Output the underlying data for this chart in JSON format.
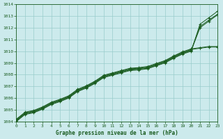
{
  "xlabel": "Graphe pression niveau de la mer (hPa)",
  "ylim": [
    1004,
    1014
  ],
  "xlim": [
    0,
    23
  ],
  "yticks": [
    1004,
    1005,
    1006,
    1007,
    1008,
    1009,
    1010,
    1011,
    1012,
    1013,
    1014
  ],
  "xticks": [
    0,
    1,
    2,
    3,
    4,
    5,
    6,
    7,
    8,
    9,
    10,
    11,
    12,
    13,
    14,
    15,
    16,
    17,
    18,
    19,
    20,
    21,
    22,
    23
  ],
  "bg_color": "#cceaec",
  "grid_color": "#99cccc",
  "line_color": "#1a5c20",
  "line1": [
    1004.1,
    1004.7,
    1004.85,
    1005.15,
    1005.55,
    1005.8,
    1006.1,
    1006.65,
    1006.95,
    1007.35,
    1007.85,
    1008.05,
    1008.25,
    1008.45,
    1008.5,
    1008.6,
    1008.85,
    1009.1,
    1009.5,
    1009.85,
    1010.1,
    1012.1,
    1012.65,
    1013.15
  ],
  "line2": [
    1004.15,
    1004.75,
    1004.9,
    1005.2,
    1005.6,
    1005.85,
    1006.15,
    1006.7,
    1007.0,
    1007.4,
    1007.9,
    1008.1,
    1008.3,
    1008.5,
    1008.55,
    1008.65,
    1008.9,
    1009.15,
    1009.55,
    1009.9,
    1010.15,
    1010.25,
    1010.35,
    1010.35
  ],
  "line3": [
    1004.2,
    1004.8,
    1004.95,
    1005.25,
    1005.65,
    1005.9,
    1006.2,
    1006.75,
    1007.05,
    1007.45,
    1007.95,
    1008.15,
    1008.35,
    1008.55,
    1008.6,
    1008.7,
    1008.95,
    1009.2,
    1009.6,
    1009.95,
    1010.2,
    1010.3,
    1010.4,
    1010.4
  ],
  "line4": [
    1004.05,
    1004.65,
    1004.8,
    1005.1,
    1005.5,
    1005.75,
    1006.05,
    1006.6,
    1006.9,
    1007.3,
    1007.8,
    1008.0,
    1008.2,
    1008.4,
    1008.45,
    1008.55,
    1008.8,
    1009.05,
    1009.45,
    1009.8,
    1010.05,
    1012.0,
    1012.55,
    1013.1
  ],
  "line5": [
    1004.0,
    1004.6,
    1004.75,
    1005.05,
    1005.45,
    1005.7,
    1006.0,
    1006.55,
    1006.85,
    1007.25,
    1007.75,
    1007.95,
    1008.15,
    1008.35,
    1008.4,
    1008.5,
    1008.75,
    1009.0,
    1009.4,
    1009.75,
    1010.0,
    1012.3,
    1012.85,
    1013.4
  ]
}
